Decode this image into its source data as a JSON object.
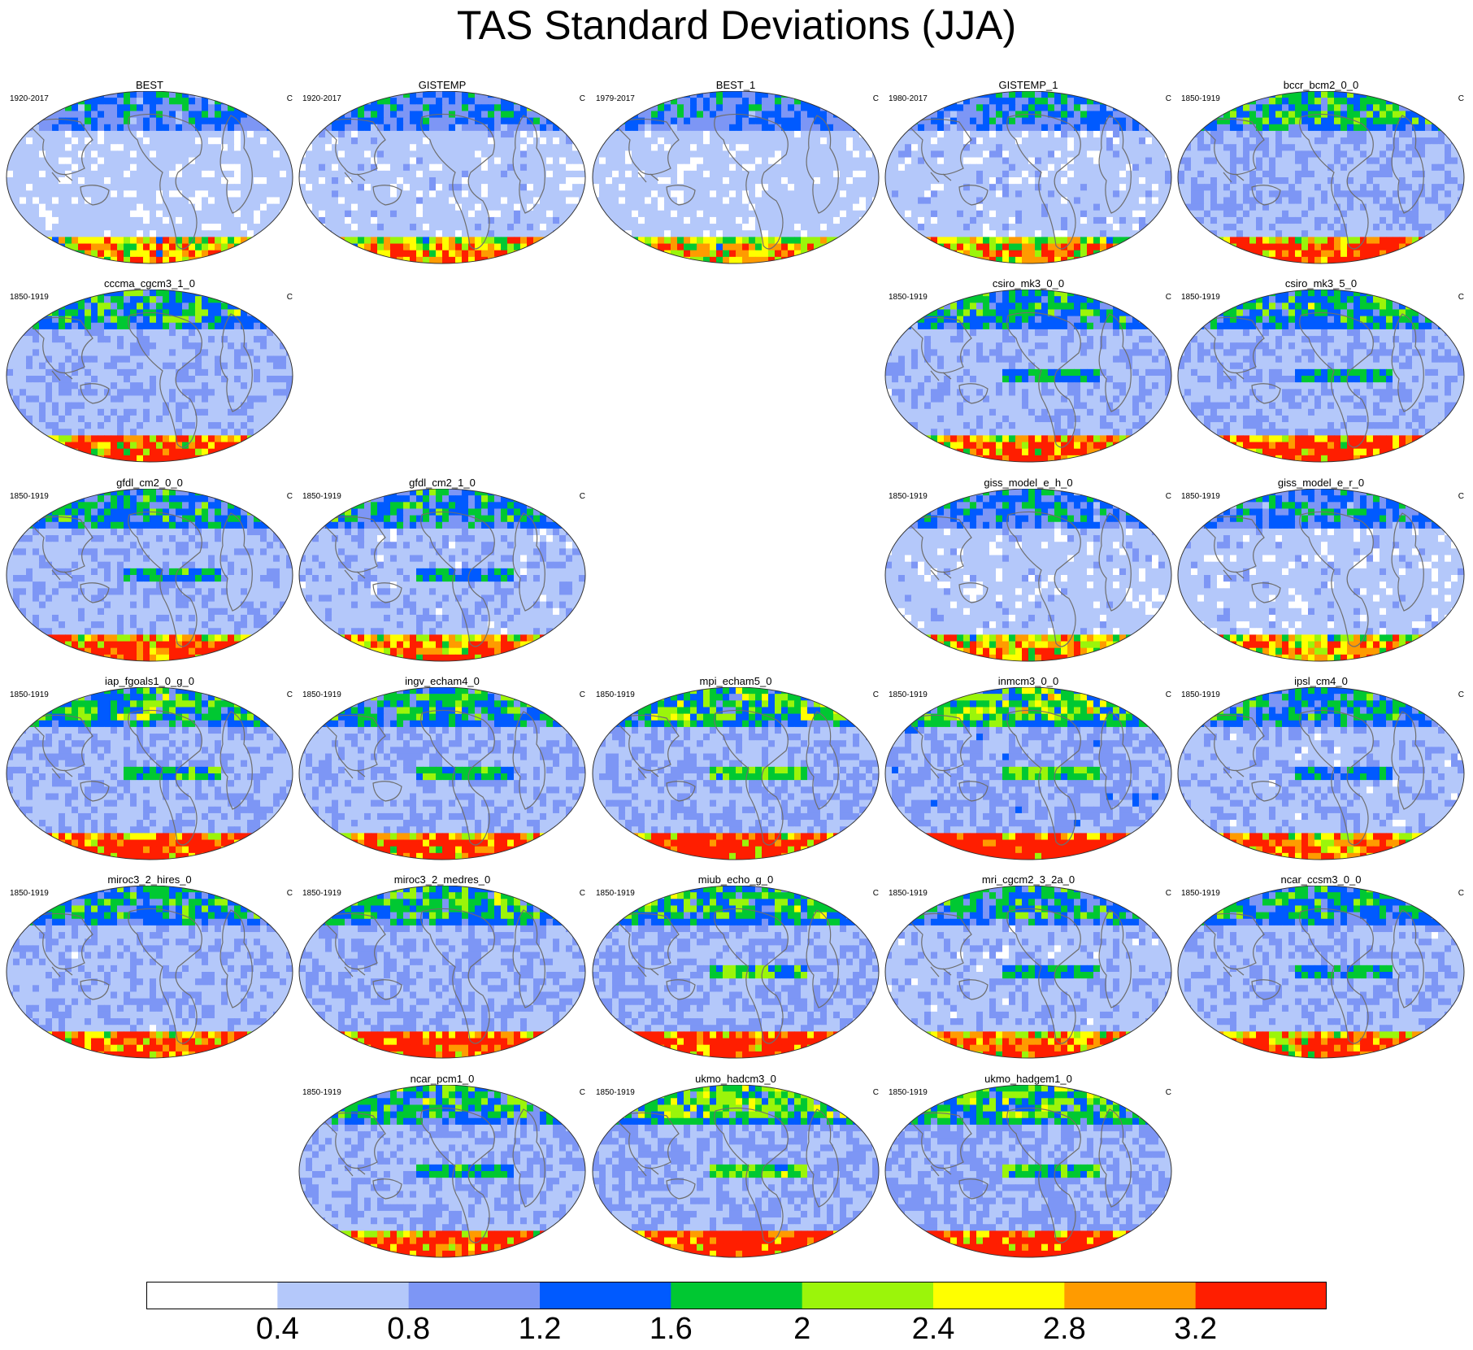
{
  "title": "TAS Standard Deviations (JJA)",
  "chart_data": {
    "type": "heatmap",
    "description_type": "filled-contour global maps (Robinson projection)",
    "variable": "TAS standard deviation",
    "season": "JJA",
    "unit": "C",
    "contour_levels": [
      0.4,
      0.8,
      1.2,
      1.6,
      2,
      2.4,
      2.8,
      3.2
    ],
    "colorbar_labels": [
      "0.4",
      "0.8",
      "1.2",
      "1.6",
      "2",
      "2.4",
      "2.8",
      "3.2"
    ],
    "colorbar_colors": [
      "#ffffff",
      "#b4c8fa",
      "#7d96f5",
      "#005aff",
      "#00c832",
      "#9bf50a",
      "#ffff00",
      "#ff9b00",
      "#ff1e00"
    ],
    "panels": [
      {
        "name": "BEST",
        "period": "1920-2017",
        "unit": "C",
        "row": 0,
        "col": 0,
        "intensity": 0.85,
        "eq_band": 0
      },
      {
        "name": "GISTEMP",
        "period": "1920-2017",
        "unit": "C",
        "row": 0,
        "col": 1,
        "intensity": 0.9,
        "eq_band": 0
      },
      {
        "name": "BEST_1",
        "period": "1979-2017",
        "unit": "C",
        "row": 0,
        "col": 2,
        "intensity": 0.85,
        "eq_band": 0
      },
      {
        "name": "GISTEMP_1",
        "period": "1980-2017",
        "unit": "C",
        "row": 0,
        "col": 3,
        "intensity": 0.9,
        "eq_band": 0
      },
      {
        "name": "bccr_bcm2_0_0",
        "period": "1850-1919",
        "unit": "C",
        "row": 0,
        "col": 4,
        "intensity": 1.15,
        "eq_band": 0
      },
      {
        "name": "cccma_cgcm3_1_0",
        "period": "1850-1919",
        "unit": "C",
        "row": 1,
        "col": 0,
        "intensity": 1.1,
        "eq_band": 0
      },
      {
        "name": "csiro_mk3_0_0",
        "period": "1850-1919",
        "unit": "C",
        "row": 1,
        "col": 3,
        "intensity": 1.05,
        "eq_band": 1
      },
      {
        "name": "csiro_mk3_5_0",
        "period": "1850-1919",
        "unit": "C",
        "row": 1,
        "col": 4,
        "intensity": 1.1,
        "eq_band": 1
      },
      {
        "name": "gfdl_cm2_0_0",
        "period": "1850-1919",
        "unit": "C",
        "row": 2,
        "col": 0,
        "intensity": 1.05,
        "eq_band": 1
      },
      {
        "name": "gfdl_cm2_1_0",
        "period": "1850-1919",
        "unit": "C",
        "row": 2,
        "col": 1,
        "intensity": 1.0,
        "eq_band": 1
      },
      {
        "name": "giss_model_e_h_0",
        "period": "1850-1919",
        "unit": "C",
        "row": 2,
        "col": 3,
        "intensity": 0.9,
        "eq_band": 0
      },
      {
        "name": "giss_model_e_r_0",
        "period": "1850-1919",
        "unit": "C",
        "row": 2,
        "col": 4,
        "intensity": 0.9,
        "eq_band": 0
      },
      {
        "name": "iap_fgoals1_0_g_0",
        "period": "1850-1919",
        "unit": "C",
        "row": 3,
        "col": 0,
        "intensity": 1.15,
        "eq_band": 1
      },
      {
        "name": "ingv_echam4_0",
        "period": "1850-1919",
        "unit": "C",
        "row": 3,
        "col": 1,
        "intensity": 1.1,
        "eq_band": 1
      },
      {
        "name": "mpi_echam5_0",
        "period": "1850-1919",
        "unit": "C",
        "row": 3,
        "col": 2,
        "intensity": 1.2,
        "eq_band": 1
      },
      {
        "name": "inmcm3_0_0",
        "period": "1850-1919",
        "unit": "C",
        "row": 3,
        "col": 3,
        "intensity": 1.3,
        "eq_band": 1
      },
      {
        "name": "ipsl_cm4_0",
        "period": "1850-1919",
        "unit": "C",
        "row": 3,
        "col": 4,
        "intensity": 1.0,
        "eq_band": 1
      },
      {
        "name": "miroc3_2_hires_0",
        "period": "1850-1919",
        "unit": "C",
        "row": 4,
        "col": 0,
        "intensity": 1.05,
        "eq_band": 0
      },
      {
        "name": "miroc3_2_medres_0",
        "period": "1850-1919",
        "unit": "C",
        "row": 4,
        "col": 1,
        "intensity": 1.15,
        "eq_band": 0
      },
      {
        "name": "miub_echo_g_0",
        "period": "1850-1919",
        "unit": "C",
        "row": 4,
        "col": 2,
        "intensity": 1.2,
        "eq_band": 1
      },
      {
        "name": "mri_cgcm2_3_2a_0",
        "period": "1850-1919",
        "unit": "C",
        "row": 4,
        "col": 3,
        "intensity": 1.0,
        "eq_band": 1
      },
      {
        "name": "ncar_ccsm3_0_0",
        "period": "1850-1919",
        "unit": "C",
        "row": 4,
        "col": 4,
        "intensity": 1.05,
        "eq_band": 1
      },
      {
        "name": "ncar_pcm1_0",
        "period": "1850-1919",
        "unit": "C",
        "row": 5,
        "col": 1,
        "intensity": 1.1,
        "eq_band": 1
      },
      {
        "name": "ukmo_hadcm3_0",
        "period": "1850-1919",
        "unit": "C",
        "row": 5,
        "col": 2,
        "intensity": 1.25,
        "eq_band": 1
      },
      {
        "name": "ukmo_hadgem1_0",
        "period": "1850-1919",
        "unit": "C",
        "row": 5,
        "col": 3,
        "intensity": 1.25,
        "eq_band": 1
      }
    ]
  }
}
